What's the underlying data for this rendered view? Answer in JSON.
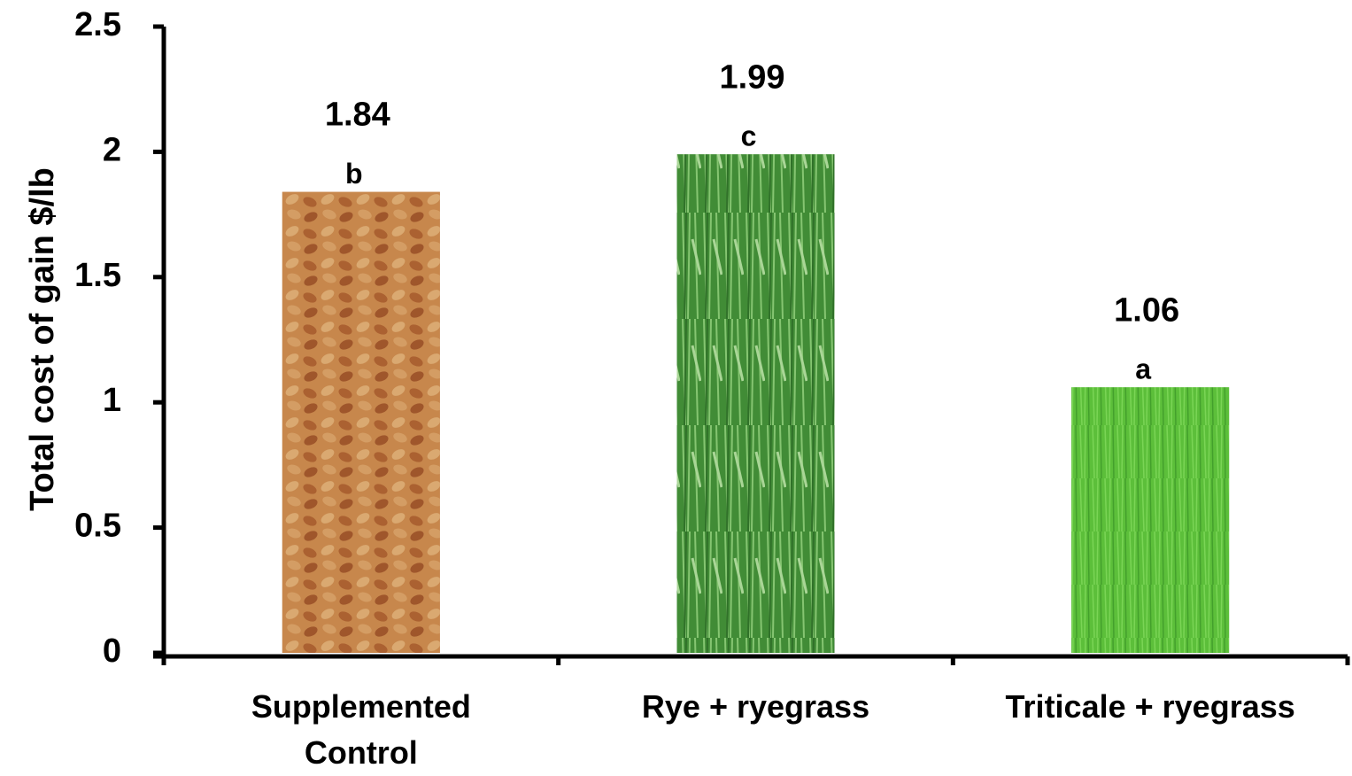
{
  "chart_data": {
    "type": "bar",
    "y_label": "Total cost of gain $/lb",
    "categories": [
      "Supplemented Control",
      "Rye + ryegrass",
      "Triticale + ryegrass"
    ],
    "values": [
      1.84,
      1.99,
      1.06
    ],
    "significance_letters": [
      "b",
      "c",
      "a"
    ],
    "colors": [
      "#b9753f",
      "#4f9a3e",
      "#5cbf3a"
    ],
    "ylim": [
      0,
      2.5
    ],
    "yticks": [
      0,
      0.5,
      1,
      1.5,
      2,
      2.5
    ],
    "grid": false
  }
}
